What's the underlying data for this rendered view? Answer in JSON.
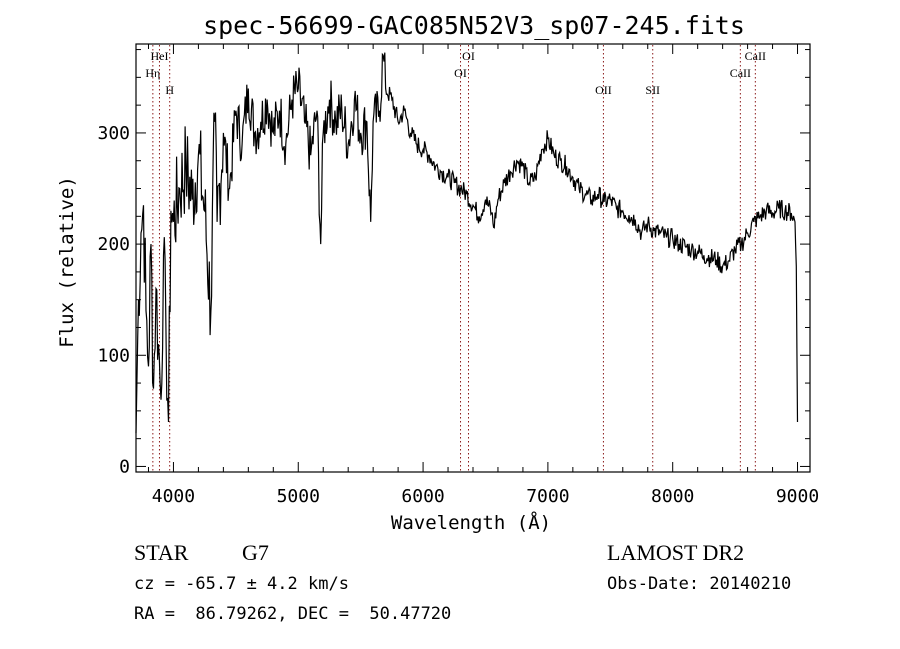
{
  "chart_data": {
    "type": "line",
    "title": "spec-56699-GAC085N52V3_sp07-245.fits",
    "xlabel": "Wavelength (Å)",
    "ylabel": "Flux (relative)",
    "xlim": [
      3700,
      9100
    ],
    "ylim": [
      -5,
      380
    ],
    "xticks": [
      "4000",
      "5000",
      "6000",
      "7000",
      "8000",
      "9000"
    ],
    "yticks": [
      "0",
      "100",
      "200",
      "300"
    ],
    "series": [
      {
        "x": [
          3700,
          3720,
          3740,
          3760,
          3780,
          3800,
          3820,
          3840,
          3860,
          3880,
          3900,
          3920,
          3940,
          3960,
          3980,
          4000,
          4050,
          4100,
          4150,
          4200,
          4250,
          4300,
          4330,
          4350,
          4400,
          4450,
          4500,
          4550,
          4600,
          4650,
          4700,
          4750,
          4800,
          4850,
          4900,
          4950,
          5000,
          5050,
          5100,
          5150,
          5180,
          5200,
          5250,
          5300,
          5350,
          5400,
          5450,
          5500,
          5550,
          5580,
          5600,
          5650,
          5680,
          5700,
          5750,
          5800,
          5850,
          5900,
          5950,
          6000,
          6050,
          6100,
          6150,
          6200,
          6250,
          6300,
          6350,
          6400,
          6450,
          6500,
          6550,
          6565,
          6600,
          6650,
          6700,
          6750,
          6800,
          6850,
          6900,
          6950,
          7000,
          7050,
          7100,
          7150,
          7200,
          7250,
          7300,
          7350,
          7400,
          7450,
          7500,
          7550,
          7600,
          7650,
          7700,
          7750,
          7800,
          7850,
          7900,
          7950,
          8000,
          8050,
          8100,
          8150,
          8200,
          8250,
          8300,
          8350,
          8400,
          8450,
          8500,
          8550,
          8600,
          8650,
          8700,
          8750,
          8800,
          8850,
          8900,
          8950,
          8980,
          8990,
          9000
        ],
        "y": [
          30,
          150,
          210,
          235,
          140,
          90,
          200,
          70,
          160,
          110,
          60,
          190,
          120,
          40,
          230,
          220,
          250,
          270,
          240,
          280,
          230,
          140,
          310,
          220,
          300,
          250,
          320,
          290,
          340,
          300,
          310,
          330,
          300,
          320,
          290,
          330,
          340,
          310,
          280,
          320,
          200,
          300,
          330,
          310,
          320,
          290,
          330,
          300,
          310,
          220,
          310,
          320,
          370,
          340,
          330,
          310,
          320,
          300,
          290,
          285,
          280,
          270,
          265,
          260,
          255,
          250,
          245,
          235,
          225,
          240,
          228,
          215,
          240,
          255,
          265,
          275,
          270,
          255,
          260,
          285,
          295,
          280,
          275,
          270,
          260,
          250,
          245,
          240,
          245,
          238,
          240,
          232,
          230,
          226,
          222,
          210,
          218,
          212,
          210,
          206,
          205,
          200,
          198,
          195,
          193,
          190,
          188,
          186,
          180,
          185,
          195,
          200,
          210,
          220,
          225,
          230,
          228,
          232,
          230,
          228,
          220,
          180,
          40
        ]
      }
    ],
    "line_markers": [
      {
        "label": "Hη",
        "x": 3835,
        "row": 1
      },
      {
        "label": "HeI",
        "x": 3888,
        "row": 0
      },
      {
        "label": "H",
        "x": 3970,
        "row": 2
      },
      {
        "label": "OI",
        "x": 6300,
        "row": 1
      },
      {
        "label": "OI",
        "x": 6364,
        "row": 0
      },
      {
        "label": "OII",
        "x": 7445,
        "row": 2
      },
      {
        "label": "SII",
        "x": 7840,
        "row": 2
      },
      {
        "label": "CaII",
        "x": 8542,
        "row": 1
      },
      {
        "label": "CaII",
        "x": 8662,
        "row": 0
      }
    ],
    "colors": {
      "spectrum": "#000000",
      "marker": "#8b1a1a",
      "axes": "#000000"
    },
    "grid": false
  },
  "info": {
    "object_class": "STAR",
    "subclass": "G7",
    "redshift": "cz = -65.7 ± 4.2 km/s",
    "coords": "RA =  86.79262, DEC =  50.47720",
    "survey": "LAMOST DR2",
    "obs_date": "Obs-Date: 20140210"
  }
}
